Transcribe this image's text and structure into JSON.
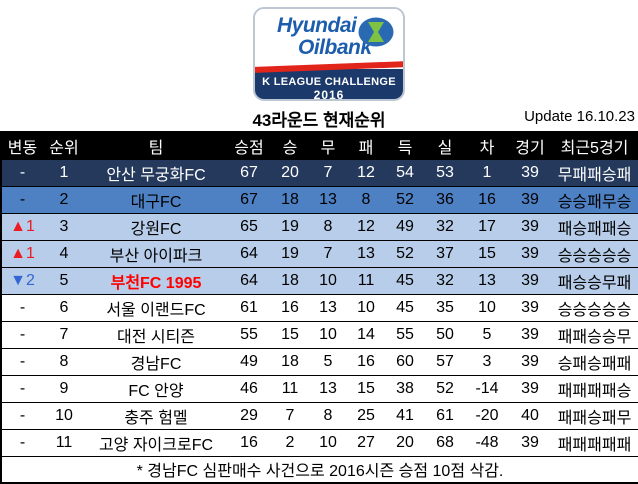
{
  "logo": {
    "brand_line1": "Hyundai",
    "brand_line2": "Oilbank",
    "league_line1": "K LEAGUE CHALLENGE",
    "league_line2": "2016",
    "colors": {
      "brand_blue": "#1d5dad",
      "league_navy": "#1b3a6b",
      "stripe_red": "#e1251b",
      "emblem_blue": "#2a6ab3",
      "emblem_green": "#7dc242"
    }
  },
  "title": "43라운드 현재순위",
  "update_label": "Update 16.10.23",
  "table": {
    "headers": [
      "변동",
      "순위",
      "팀",
      "승점",
      "승",
      "무",
      "패",
      "득",
      "실",
      "차",
      "경기",
      "최근5경기"
    ],
    "rows": [
      {
        "change": "-",
        "change_dir": "none",
        "rank": "1",
        "team": "안산 무궁화FC",
        "pts": "67",
        "w": "20",
        "d": "7",
        "l": "12",
        "gf": "54",
        "ga": "53",
        "gd": "1",
        "gp": "39",
        "recent": "무패패승패",
        "row_style": "dark",
        "team_highlight": false
      },
      {
        "change": "-",
        "change_dir": "none",
        "rank": "2",
        "team": "대구FC",
        "pts": "67",
        "w": "18",
        "d": "13",
        "l": "8",
        "gf": "52",
        "ga": "36",
        "gd": "16",
        "gp": "39",
        "recent": "승승패무승",
        "row_style": "medium",
        "team_highlight": false
      },
      {
        "change": "▲1",
        "change_dir": "up",
        "rank": "3",
        "team": "강원FC",
        "pts": "65",
        "w": "19",
        "d": "8",
        "l": "12",
        "gf": "49",
        "ga": "32",
        "gd": "17",
        "gp": "39",
        "recent": "패승패패승",
        "row_style": "light",
        "team_highlight": false
      },
      {
        "change": "▲1",
        "change_dir": "up",
        "rank": "4",
        "team": "부산 아이파크",
        "pts": "64",
        "w": "19",
        "d": "7",
        "l": "13",
        "gf": "52",
        "ga": "37",
        "gd": "15",
        "gp": "39",
        "recent": "승승승승승",
        "row_style": "light",
        "team_highlight": false
      },
      {
        "change": "▼2",
        "change_dir": "down",
        "rank": "5",
        "team": "부천FC 1995",
        "pts": "64",
        "w": "18",
        "d": "10",
        "l": "11",
        "gf": "45",
        "ga": "32",
        "gd": "13",
        "gp": "39",
        "recent": "패승승무패",
        "row_style": "light",
        "team_highlight": true
      },
      {
        "change": "-",
        "change_dir": "none",
        "rank": "6",
        "team": "서울 이랜드FC",
        "pts": "61",
        "w": "16",
        "d": "13",
        "l": "10",
        "gf": "45",
        "ga": "35",
        "gd": "10",
        "gp": "39",
        "recent": "승승승승승",
        "row_style": "white",
        "team_highlight": false
      },
      {
        "change": "-",
        "change_dir": "none",
        "rank": "7",
        "team": "대전 시티즌",
        "pts": "55",
        "w": "15",
        "d": "10",
        "l": "14",
        "gf": "55",
        "ga": "50",
        "gd": "5",
        "gp": "39",
        "recent": "패패승승무",
        "row_style": "white",
        "team_highlight": false
      },
      {
        "change": "-",
        "change_dir": "none",
        "rank": "8",
        "team": "경남FC",
        "pts": "49",
        "w": "18",
        "d": "5",
        "l": "16",
        "gf": "60",
        "ga": "57",
        "gd": "3",
        "gp": "39",
        "recent": "승패승패패",
        "row_style": "white",
        "team_highlight": false
      },
      {
        "change": "-",
        "change_dir": "none",
        "rank": "9",
        "team": "FC 안양",
        "pts": "46",
        "w": "11",
        "d": "13",
        "l": "15",
        "gf": "38",
        "ga": "52",
        "gd": "-14",
        "gp": "39",
        "recent": "패패패패승",
        "row_style": "white",
        "team_highlight": false
      },
      {
        "change": "-",
        "change_dir": "none",
        "rank": "10",
        "team": "충주 험멜",
        "pts": "29",
        "w": "7",
        "d": "8",
        "l": "25",
        "gf": "41",
        "ga": "61",
        "gd": "-20",
        "gp": "40",
        "recent": "패패승패무",
        "row_style": "white",
        "team_highlight": false
      },
      {
        "change": "-",
        "change_dir": "none",
        "rank": "11",
        "team": "고양 자이크로FC",
        "pts": "16",
        "w": "2",
        "d": "10",
        "l": "27",
        "gf": "20",
        "ga": "68",
        "gd": "-48",
        "gp": "39",
        "recent": "패패패패패",
        "row_style": "white",
        "team_highlight": false
      }
    ],
    "footnote": "* 경남FC 심판매수 사건으로 2016시즌 승점 10점 삭감.",
    "row_colors": {
      "rank1_bg": "#24395b",
      "rank2_bg": "#4e81c4",
      "rank3to5_bg": "#b7cde9",
      "header_bg": "#000000",
      "change_up": "#ed1c24",
      "change_down": "#3465d4",
      "team_highlight": "#ff0000"
    }
  },
  "chart_data": {
    "type": "table",
    "title": "43라운드 현재순위",
    "subtitle": "Update 16.10.23",
    "columns": [
      "변동",
      "순위",
      "팀",
      "승점",
      "승",
      "무",
      "패",
      "득",
      "실",
      "차",
      "경기",
      "최근5경기"
    ],
    "rows": [
      [
        "-",
        1,
        "안산 무궁화FC",
        67,
        20,
        7,
        12,
        54,
        53,
        1,
        39,
        "무패패승패"
      ],
      [
        "-",
        2,
        "대구FC",
        67,
        18,
        13,
        8,
        52,
        36,
        16,
        39,
        "승승패무승"
      ],
      [
        "▲1",
        3,
        "강원FC",
        65,
        19,
        8,
        12,
        49,
        32,
        17,
        39,
        "패승패패승"
      ],
      [
        "▲1",
        4,
        "부산 아이파크",
        64,
        19,
        7,
        13,
        52,
        37,
        15,
        39,
        "승승승승승"
      ],
      [
        "▼2",
        5,
        "부천FC 1995",
        64,
        18,
        10,
        11,
        45,
        32,
        13,
        39,
        "패승승무패"
      ],
      [
        "-",
        6,
        "서울 이랜드FC",
        61,
        16,
        13,
        10,
        45,
        35,
        10,
        39,
        "승승승승승"
      ],
      [
        "-",
        7,
        "대전 시티즌",
        55,
        15,
        10,
        14,
        55,
        50,
        5,
        39,
        "패패승승무"
      ],
      [
        "-",
        8,
        "경남FC",
        49,
        18,
        5,
        16,
        60,
        57,
        3,
        39,
        "승패승패패"
      ],
      [
        "-",
        9,
        "FC 안양",
        46,
        11,
        13,
        15,
        38,
        52,
        -14,
        39,
        "패패패패승"
      ],
      [
        "-",
        10,
        "충주 험멜",
        29,
        7,
        8,
        25,
        41,
        61,
        -20,
        40,
        "패패승패무"
      ],
      [
        "-",
        11,
        "고양 자이크로FC",
        16,
        2,
        10,
        27,
        20,
        68,
        -48,
        39,
        "패패패패패"
      ]
    ],
    "footnote": "* 경남FC 심판매수 사건으로 2016시즌 승점 10점 삭감."
  }
}
